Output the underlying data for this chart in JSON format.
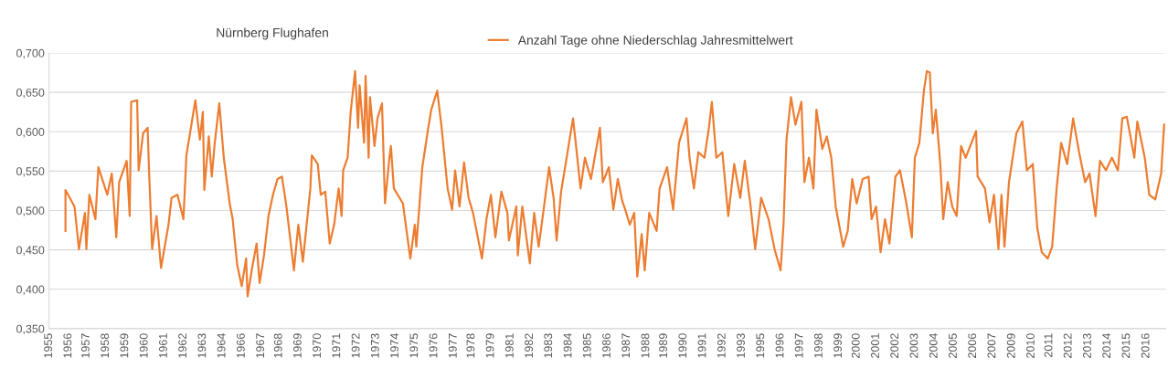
{
  "chart_data": {
    "type": "line",
    "title": "Nürnberg Flughafen",
    "series": [
      {
        "name": "Anzahl Tage ohne Niederschlag Jahresmittelwert",
        "color": "#ed7d31",
        "x": [
          "1956-03",
          "1956-03",
          "1956-09",
          "1956-12",
          "1957-04",
          "1957-05",
          "1957-07",
          "1957-11",
          "1958-01",
          "1958-07",
          "1958-10",
          "1959-01",
          "1959-03",
          "1959-08",
          "1959-10",
          "1959-11",
          "1960-03",
          "1960-04",
          "1960-07",
          "1960-10",
          "1960-11",
          "1961-01",
          "1961-04",
          "1961-07",
          "1961-12",
          "1962-02",
          "1962-06",
          "1962-10",
          "1962-12",
          "1963-06",
          "1963-09",
          "1963-11",
          "1963-12",
          "1964-03",
          "1964-05",
          "1964-07",
          "1964-10",
          "1965-01",
          "1965-05",
          "1965-07",
          "1965-10",
          "1966-01",
          "1966-04",
          "1966-05",
          "1966-08",
          "1966-11",
          "1967-01",
          "1967-04",
          "1967-07",
          "1967-10",
          "1968-01",
          "1968-04",
          "1968-07",
          "1968-12",
          "1969-03",
          "1969-06",
          "1969-11",
          "1969-12",
          "1970-04",
          "1970-06",
          "1970-09",
          "1970-12",
          "1971-03",
          "1971-06",
          "1971-08",
          "1971-09",
          "1971-12",
          "1972-02",
          "1972-05",
          "1972-07",
          "1972-08",
          "1972-11",
          "1972-12",
          "1973-02",
          "1973-03",
          "1973-06",
          "1973-08",
          "1973-11",
          "1974-01",
          "1974-04",
          "1974-05",
          "1974-07",
          "1975-01",
          "1975-06",
          "1975-09",
          "1975-10",
          "1976-02",
          "1976-06",
          "1976-08",
          "1976-12",
          "1977-03",
          "1977-07",
          "1977-10",
          "1977-12",
          "1978-03",
          "1978-06",
          "1978-09",
          "1978-12",
          "1979-06",
          "1979-09",
          "1979-12",
          "1980-03",
          "1980-07",
          "1980-11",
          "1980-12",
          "1981-05",
          "1981-06",
          "1981-09",
          "1982-02",
          "1982-05",
          "1982-08",
          "1982-11",
          "1983-03",
          "1983-06",
          "1983-08",
          "1983-11",
          "1984-02",
          "1984-07",
          "1984-09",
          "1984-12",
          "1985-03",
          "1985-07",
          "1986-01",
          "1986-03",
          "1986-07",
          "1986-10",
          "1987-01",
          "1987-04",
          "1987-06",
          "1987-09",
          "1987-12",
          "1988-02",
          "1988-05",
          "1988-07",
          "1988-10",
          "1989-03",
          "1989-05",
          "1989-10",
          "1990-02",
          "1990-06",
          "1990-11",
          "1991-01",
          "1991-04",
          "1991-07",
          "1991-11",
          "1992-02",
          "1992-04",
          "1992-07",
          "1992-11",
          "1993-03",
          "1993-07",
          "1993-11",
          "1994-02",
          "1994-06",
          "1994-09",
          "1995-01",
          "1995-06",
          "1995-10",
          "1996-02",
          "1996-04",
          "1996-06",
          "1996-09",
          "1996-12",
          "1997-04",
          "1997-06",
          "1997-09",
          "1997-12",
          "1998-02",
          "1998-06",
          "1998-09",
          "1998-12",
          "1999-03",
          "1999-08",
          "1999-11",
          "2000-02",
          "2000-05",
          "2000-09",
          "2001-01",
          "2001-03",
          "2001-06",
          "2001-09",
          "2001-12",
          "2002-03",
          "2002-07",
          "2002-10",
          "2003-02",
          "2003-06",
          "2003-08",
          "2003-11",
          "2004-02",
          "2004-04",
          "2004-06",
          "2004-08",
          "2004-10",
          "2005-01",
          "2005-03",
          "2005-06",
          "2005-09",
          "2005-12",
          "2006-03",
          "2006-06",
          "2007-01",
          "2007-02",
          "2007-07",
          "2007-10",
          "2008-01",
          "2008-04",
          "2008-06",
          "2008-08",
          "2008-11",
          "2009-04",
          "2009-08",
          "2009-11",
          "2010-03",
          "2010-06",
          "2010-09",
          "2011-01",
          "2011-04",
          "2011-07",
          "2011-10",
          "2012-02",
          "2012-06",
          "2012-10",
          "2013-02",
          "2013-05",
          "2013-09",
          "2013-12",
          "2014-04",
          "2014-08",
          "2014-12",
          "2015-03",
          "2015-06",
          "2015-11",
          "2016-01",
          "2016-06",
          "2016-09",
          "2017-01",
          "2017-05",
          "2017-07"
        ],
        "values": [
          0.474,
          0.526,
          0.505,
          0.451,
          0.497,
          0.451,
          0.52,
          0.489,
          0.555,
          0.52,
          0.547,
          0.466,
          0.536,
          0.563,
          0.493,
          0.638,
          0.64,
          0.551,
          0.598,
          0.605,
          0.547,
          0.451,
          0.493,
          0.427,
          0.482,
          0.516,
          0.52,
          0.489,
          0.57,
          0.64,
          0.59,
          0.625,
          0.526,
          0.594,
          0.543,
          0.586,
          0.636,
          0.567,
          0.509,
          0.489,
          0.431,
          0.404,
          0.439,
          0.391,
          0.427,
          0.458,
          0.408,
          0.443,
          0.493,
          0.52,
          0.54,
          0.543,
          0.505,
          0.424,
          0.482,
          0.435,
          0.528,
          0.57,
          0.559,
          0.52,
          0.524,
          0.458,
          0.482,
          0.528,
          0.493,
          0.551,
          0.567,
          0.625,
          0.677,
          0.605,
          0.659,
          0.586,
          0.671,
          0.567,
          0.644,
          0.582,
          0.617,
          0.636,
          0.509,
          0.567,
          0.582,
          0.528,
          0.509,
          0.439,
          0.482,
          0.454,
          0.555,
          0.605,
          0.628,
          0.652,
          0.605,
          0.528,
          0.501,
          0.551,
          0.505,
          0.561,
          0.516,
          0.497,
          0.439,
          0.489,
          0.52,
          0.466,
          0.524,
          0.497,
          0.462,
          0.505,
          0.443,
          0.505,
          0.433,
          0.497,
          0.454,
          0.497,
          0.555,
          0.516,
          0.462,
          0.524,
          0.559,
          0.617,
          0.582,
          0.528,
          0.567,
          0.54,
          0.605,
          0.536,
          0.555,
          0.501,
          0.54,
          0.512,
          0.501,
          0.482,
          0.497,
          0.416,
          0.47,
          0.424,
          0.497,
          0.474,
          0.528,
          0.555,
          0.501,
          0.586,
          0.617,
          0.567,
          0.528,
          0.574,
          0.567,
          0.605,
          0.638,
          0.567,
          0.574,
          0.493,
          0.559,
          0.516,
          0.563,
          0.505,
          0.451,
          0.516,
          0.489,
          0.451,
          0.424,
          0.482,
          0.59,
          0.644,
          0.609,
          0.638,
          0.536,
          0.567,
          0.528,
          0.628,
          0.578,
          0.594,
          0.567,
          0.505,
          0.454,
          0.474,
          0.54,
          0.509,
          0.54,
          0.543,
          0.489,
          0.505,
          0.447,
          0.489,
          0.458,
          0.543,
          0.551,
          0.512,
          0.466,
          0.567,
          0.586,
          0.652,
          0.677,
          0.675,
          0.598,
          0.628,
          0.559,
          0.489,
          0.536,
          0.505,
          0.493,
          0.582,
          0.567,
          0.601,
          0.543,
          0.528,
          0.485,
          0.52,
          0.451,
          0.52,
          0.454,
          0.536,
          0.598,
          0.613,
          0.551,
          0.559,
          0.478,
          0.447,
          0.439,
          0.454,
          0.528,
          0.586,
          0.559,
          0.617,
          0.574,
          0.536,
          0.547,
          0.493,
          0.563,
          0.551,
          0.567,
          0.551,
          0.617,
          0.619,
          0.567,
          0.613,
          0.567,
          0.52,
          0.514,
          0.547,
          0.609
        ]
      }
    ],
    "xlim": [
      "1955-04",
      "2017-08"
    ],
    "xticks": [
      {
        "value": "1955-04",
        "label": "1955"
      },
      {
        "value": "1956-05",
        "label": "1956"
      },
      {
        "value": "1957-05",
        "label": "1957"
      },
      {
        "value": "1958-06",
        "label": "1958"
      },
      {
        "value": "1959-07",
        "label": "1959"
      },
      {
        "value": "1960-08",
        "label": "1960"
      },
      {
        "value": "1961-09",
        "label": "1961"
      },
      {
        "value": "1962-10",
        "label": "1962"
      },
      {
        "value": "1963-11",
        "label": "1963"
      },
      {
        "value": "1964-12",
        "label": "1964"
      },
      {
        "value": "1966-01",
        "label": "1966"
      },
      {
        "value": "1967-02",
        "label": "1967"
      },
      {
        "value": "1968-02",
        "label": "1968"
      },
      {
        "value": "1969-03",
        "label": "1969"
      },
      {
        "value": "1970-04",
        "label": "1970"
      },
      {
        "value": "1971-05",
        "label": "1971"
      },
      {
        "value": "1972-06",
        "label": "1972"
      },
      {
        "value": "1973-07",
        "label": "1973"
      },
      {
        "value": "1974-08",
        "label": "1974"
      },
      {
        "value": "1975-09",
        "label": "1975"
      },
      {
        "value": "1976-10",
        "label": "1976"
      },
      {
        "value": "1977-11",
        "label": "1977"
      },
      {
        "value": "1978-11",
        "label": "1978"
      },
      {
        "value": "1979-12",
        "label": "1979"
      },
      {
        "value": "1981-01",
        "label": "1981"
      },
      {
        "value": "1982-02",
        "label": "1982"
      },
      {
        "value": "1983-03",
        "label": "1983"
      },
      {
        "value": "1984-04",
        "label": "1984"
      },
      {
        "value": "1985-05",
        "label": "1985"
      },
      {
        "value": "1986-06",
        "label": "1986"
      },
      {
        "value": "1987-07",
        "label": "1987"
      },
      {
        "value": "1988-08",
        "label": "1988"
      },
      {
        "value": "1989-08",
        "label": "1989"
      },
      {
        "value": "1990-09",
        "label": "1990"
      },
      {
        "value": "1991-10",
        "label": "1991"
      },
      {
        "value": "1992-11",
        "label": "1992"
      },
      {
        "value": "1993-12",
        "label": "1993"
      },
      {
        "value": "1995-01",
        "label": "1995"
      },
      {
        "value": "1996-02",
        "label": "1996"
      },
      {
        "value": "1997-03",
        "label": "1997"
      },
      {
        "value": "1998-04",
        "label": "1998"
      },
      {
        "value": "1999-05",
        "label": "1999"
      },
      {
        "value": "2000-05",
        "label": "2000"
      },
      {
        "value": "2001-06",
        "label": "2001"
      },
      {
        "value": "2002-07",
        "label": "2002"
      },
      {
        "value": "2003-08",
        "label": "2003"
      },
      {
        "value": "2004-09",
        "label": "2004"
      },
      {
        "value": "2005-10",
        "label": "2005"
      },
      {
        "value": "2006-11",
        "label": "2006"
      },
      {
        "value": "2007-12",
        "label": "2007"
      },
      {
        "value": "2009-01",
        "label": "2009"
      },
      {
        "value": "2010-02",
        "label": "2010"
      },
      {
        "value": "2011-02",
        "label": "2011"
      },
      {
        "value": "2012-03",
        "label": "2012"
      },
      {
        "value": "2013-04",
        "label": "2013"
      },
      {
        "value": "2014-05",
        "label": "2014"
      },
      {
        "value": "2015-06",
        "label": "2015"
      },
      {
        "value": "2016-07",
        "label": "2016"
      }
    ],
    "ylim": [
      0.35,
      0.7
    ],
    "yticks": [
      {
        "value": 0.35,
        "label": "0,350"
      },
      {
        "value": 0.4,
        "label": "0,400"
      },
      {
        "value": 0.45,
        "label": "0,450"
      },
      {
        "value": 0.5,
        "label": "0,500"
      },
      {
        "value": 0.55,
        "label": "0,550"
      },
      {
        "value": 0.6,
        "label": "0,600"
      },
      {
        "value": 0.65,
        "label": "0,650"
      },
      {
        "value": 0.7,
        "label": "0,700"
      }
    ],
    "grid": "y",
    "legend": "top",
    "marker": "none",
    "line_style": "solid"
  }
}
